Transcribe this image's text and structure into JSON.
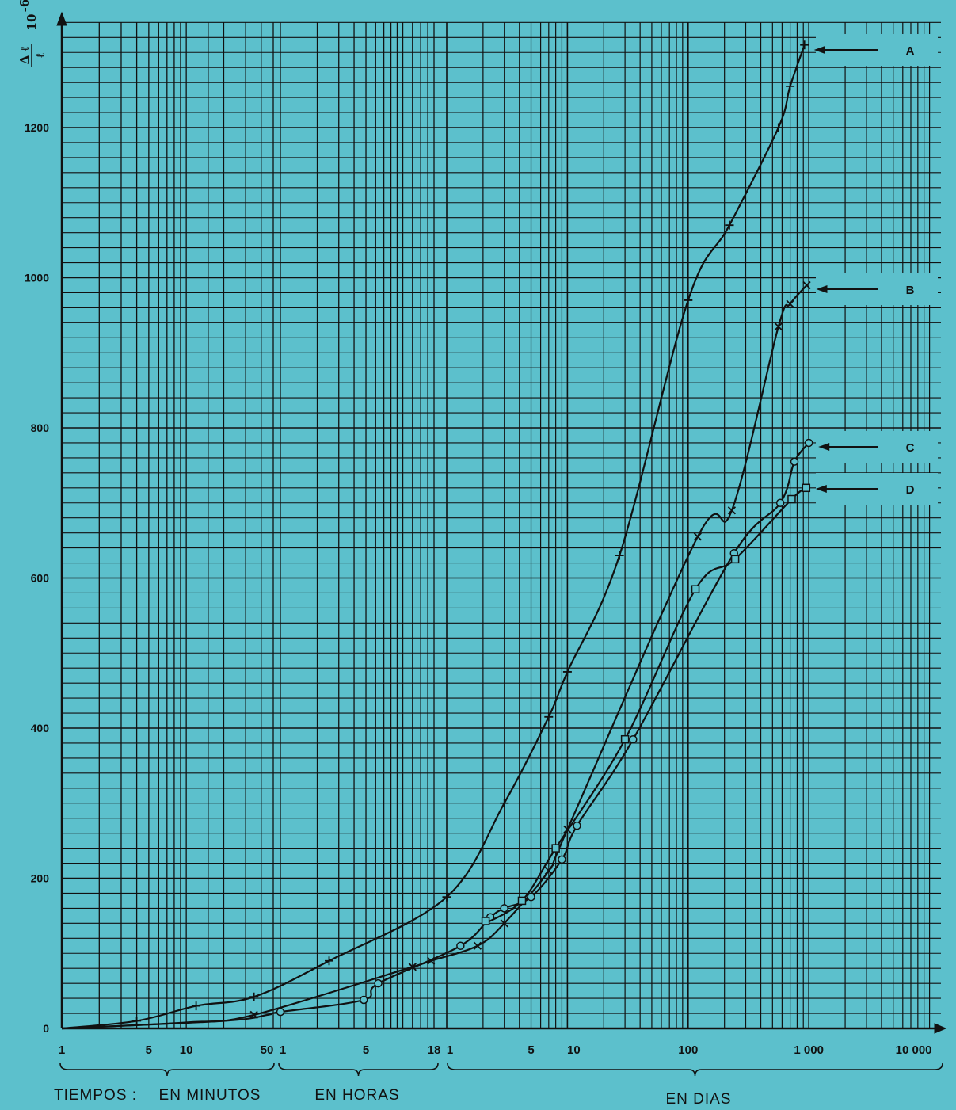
{
  "chart_data": {
    "type": "line",
    "x_scale": "log",
    "y_axis": {
      "label_numerator": "Δ ℓ",
      "label_denominator": "ℓ",
      "label_factor": "10",
      "label_exponent": "-6",
      "ticks": [
        0,
        200,
        400,
        600,
        800,
        1000,
        1200
      ],
      "ylim": [
        0,
        1340
      ]
    },
    "x_axis": {
      "segments": [
        {
          "unit": "minutos",
          "range": [
            1,
            50
          ],
          "labels": [
            "1",
            "5",
            "10",
            "50"
          ]
        },
        {
          "unit": "horas",
          "range": [
            1,
            18
          ],
          "labels": [
            "1",
            "5",
            "18"
          ]
        },
        {
          "unit": "dias",
          "range": [
            1,
            10000
          ],
          "labels": [
            "1",
            "5",
            "10",
            "100",
            "1 000",
            "10 000"
          ]
        }
      ]
    },
    "captions": {
      "prefix": "TIEMPOS :",
      "minutes": "EN  MINUTOS",
      "hours": "EN  HORAS",
      "days": "EN  DIAS"
    },
    "grid": true,
    "series": [
      {
        "name": "A",
        "marker": "+",
        "points": [
          [
            "min",
            4,
            10
          ],
          [
            "min",
            12,
            30
          ],
          [
            "min",
            35,
            42
          ],
          [
            "hr",
            2.5,
            90
          ],
          [
            "day",
            1,
            175
          ],
          [
            "day",
            3,
            300
          ],
          [
            "day",
            7,
            415
          ],
          [
            "day",
            10,
            475
          ],
          [
            "day",
            27,
            630
          ],
          [
            "day",
            100,
            970
          ],
          [
            "day",
            220,
            1070
          ],
          [
            "day",
            560,
            1200
          ],
          [
            "day",
            700,
            1255
          ],
          [
            "day",
            920,
            1310
          ]
        ]
      },
      {
        "name": "B",
        "marker": "x",
        "points": [
          [
            "min",
            35,
            18
          ],
          [
            "hr",
            12,
            82
          ],
          [
            "hr",
            17,
            90
          ],
          [
            "day",
            1.8,
            110
          ],
          [
            "day",
            3,
            140
          ],
          [
            "day",
            7,
            210
          ],
          [
            "day",
            10,
            265
          ],
          [
            "day",
            120,
            655
          ],
          [
            "day",
            230,
            690
          ],
          [
            "day",
            560,
            935
          ],
          [
            "day",
            700,
            965
          ],
          [
            "day",
            960,
            990
          ]
        ]
      },
      {
        "name": "C",
        "marker": "o",
        "points": [
          [
            "hr",
            1,
            22
          ],
          [
            "hr",
            4.8,
            38
          ],
          [
            "hr",
            6.3,
            60
          ],
          [
            "day",
            1.3,
            110
          ],
          [
            "day",
            2.3,
            148
          ],
          [
            "day",
            3,
            160
          ],
          [
            "day",
            5,
            175
          ],
          [
            "day",
            9,
            225
          ],
          [
            "day",
            12,
            270
          ],
          [
            "day",
            35,
            385
          ],
          [
            "day",
            240,
            633
          ],
          [
            "day",
            580,
            700
          ],
          [
            "day",
            760,
            755
          ],
          [
            "day",
            1000,
            780
          ]
        ]
      },
      {
        "name": "D",
        "marker": "square",
        "points": [
          [
            "day",
            2.1,
            143
          ],
          [
            "day",
            4.2,
            170
          ],
          [
            "day",
            8,
            240
          ],
          [
            "day",
            30,
            385
          ],
          [
            "day",
            115,
            585
          ],
          [
            "day",
            245,
            625
          ],
          [
            "day",
            720,
            705
          ],
          [
            "day",
            950,
            720
          ]
        ]
      }
    ]
  }
}
